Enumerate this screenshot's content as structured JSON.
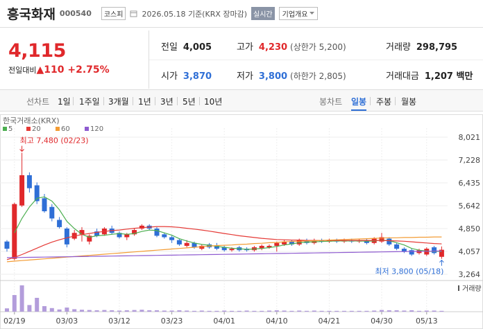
{
  "header": {
    "name": "흥국화재",
    "code": "000540",
    "market": "코스피",
    "date": "2026.05.18 기준(KRX 장마감)",
    "realtime": "실시간",
    "company_info": "기업개요"
  },
  "quote": {
    "price": "4,115",
    "change_label": "전일대비",
    "change": "▲110",
    "change_pct": "+2.75%"
  },
  "stats": [
    {
      "label": "전일",
      "value": "4,005"
    },
    {
      "label": "고가",
      "value": "4,230",
      "note": "(상한가 5,200)"
    },
    {
      "label": "거래량",
      "value": "298,795"
    },
    {
      "label": "시가",
      "value": "3,870"
    },
    {
      "label": "저가",
      "value": "3,800",
      "note": "(하한가 2,805)"
    },
    {
      "label": "거래대금",
      "value": "1,207 백만"
    }
  ],
  "tabs": {
    "line_chart": "선차트",
    "line_periods": [
      "1일",
      "1주일",
      "3개월",
      "1년",
      "3년",
      "5년",
      "10년"
    ],
    "candle_chart": "봉차트",
    "candle_periods": [
      "일봉",
      "주봉",
      "월봉"
    ],
    "selected_period": 0
  },
  "chart_data": {
    "type": "candlestick",
    "source": "한국거래소(KRX)",
    "categories": [
      null,
      "02/19",
      null,
      null,
      null,
      null,
      null,
      null,
      "03/03",
      null,
      null,
      null,
      null,
      null,
      null,
      "03/12",
      null,
      null,
      null,
      null,
      null,
      null,
      "03/23",
      null,
      null,
      null,
      null,
      null,
      null,
      "04/01",
      null,
      null,
      null,
      null,
      null,
      null,
      "04/10",
      null,
      null,
      null,
      null,
      null,
      null,
      "04/21",
      null,
      null,
      null,
      null,
      null,
      null,
      "04/30",
      null,
      null,
      null,
      null,
      null,
      "05/13",
      null,
      null
    ],
    "open": [
      4400,
      3800,
      5650,
      6700,
      6350,
      5900,
      5600,
      5150,
      4850,
      4500,
      4650,
      4400,
      4750,
      4650,
      4850,
      4700,
      4550,
      4650,
      4850,
      4950,
      4850,
      4650,
      4550,
      4450,
      4250,
      4350,
      4150,
      4300,
      4250,
      4200,
      4100,
      4200,
      4150,
      4100,
      4150,
      4200,
      4250,
      4300,
      4400,
      4300,
      4450,
      4350,
      4450,
      4400,
      4450,
      4400,
      4450,
      4400,
      4450,
      4350,
      4400,
      4500,
      4300,
      4150,
      4100,
      4000,
      3950,
      4200,
      3870
    ],
    "high": [
      4450,
      5750,
      7480,
      6800,
      6450,
      6050,
      5700,
      5250,
      4900,
      4800,
      4900,
      4650,
      4850,
      4900,
      4950,
      4750,
      4700,
      4850,
      5000,
      5000,
      4900,
      4700,
      4600,
      4500,
      4450,
      4400,
      4300,
      4350,
      4350,
      4250,
      4200,
      4250,
      4200,
      4250,
      4300,
      4300,
      4400,
      4450,
      4450,
      4500,
      4500,
      4500,
      4500,
      4500,
      4500,
      4500,
      4500,
      4500,
      4500,
      4550,
      4700,
      4550,
      4350,
      4200,
      4150,
      4150,
      4200,
      4250,
      4230
    ],
    "low": [
      4050,
      3750,
      5600,
      6100,
      5700,
      5400,
      5100,
      4850,
      4200,
      4450,
      4400,
      4300,
      4550,
      4600,
      4650,
      4500,
      4450,
      4600,
      4800,
      4800,
      4550,
      4500,
      4350,
      4250,
      4200,
      4150,
      4100,
      4150,
      4100,
      4050,
      4050,
      4050,
      4050,
      4050,
      4100,
      4150,
      4050,
      4250,
      4250,
      4250,
      4300,
      4300,
      4350,
      4350,
      4350,
      4350,
      4350,
      4350,
      4300,
      4300,
      4350,
      4250,
      4100,
      4000,
      3900,
      3950,
      3900,
      3950,
      3800
    ],
    "close": [
      4150,
      5700,
      6700,
      6250,
      5800,
      5450,
      5200,
      4900,
      4300,
      4700,
      4800,
      4600,
      4600,
      4850,
      4700,
      4550,
      4650,
      4800,
      4950,
      4850,
      4600,
      4550,
      4450,
      4300,
      4350,
      4200,
      4250,
      4200,
      4150,
      4100,
      4150,
      4100,
      4100,
      4200,
      4250,
      4250,
      4350,
      4400,
      4300,
      4450,
      4350,
      4450,
      4400,
      4450,
      4400,
      4450,
      4400,
      4450,
      4350,
      4500,
      4550,
      4300,
      4150,
      4050,
      3950,
      4100,
      4150,
      4000,
      4115
    ],
    "up_color": "#e0282b",
    "down_color": "#2f6fd6",
    "moving_averages": [
      {
        "name": "5",
        "color": "#4caf50",
        "values": [
          null,
          4700,
          5200,
          5600,
          5900,
          5950,
          5800,
          5500,
          5100,
          4850,
          4650,
          4550,
          4600,
          4620,
          4650,
          4680,
          4650,
          4680,
          4750,
          4800,
          4780,
          4700,
          4620,
          4500,
          4420,
          4350,
          4300,
          4270,
          4230,
          4200,
          4170,
          4150,
          4130,
          4140,
          4160,
          4190,
          4230,
          4280,
          4320,
          4360,
          4380,
          4390,
          4400,
          4410,
          4420,
          4420,
          4420,
          4420,
          4410,
          4420,
          4450,
          4430,
          4360,
          4280,
          4160,
          4100,
          4070,
          4060,
          4060
        ]
      },
      {
        "name": "20",
        "color": "#e53935",
        "values": [
          3770,
          3850,
          3950,
          4060,
          4170,
          4280,
          4380,
          4460,
          4530,
          4590,
          4640,
          4680,
          4720,
          4750,
          4780,
          4800,
          4830,
          4860,
          4880,
          4900,
          4920,
          4920,
          4910,
          4890,
          4860,
          4830,
          4800,
          4760,
          4720,
          4680,
          4640,
          4600,
          4570,
          4540,
          4510,
          4490,
          4470,
          4460,
          4450,
          4450,
          4440,
          4440,
          4440,
          4440,
          4440,
          4440,
          4440,
          4440,
          4440,
          4440,
          4440,
          4430,
          4420,
          4410,
          4390,
          4370,
          4350,
          4330,
          4320
        ]
      },
      {
        "name": "60",
        "color": "#f39c34",
        "values": [
          3700,
          3720,
          3740,
          3760,
          3780,
          3800,
          3820,
          3840,
          3860,
          3880,
          3900,
          3920,
          3940,
          3960,
          3980,
          4000,
          4020,
          4040,
          4060,
          4080,
          4100,
          4120,
          4140,
          4160,
          4180,
          4200,
          4220,
          4240,
          4260,
          4270,
          4280,
          4300,
          4310,
          4330,
          4340,
          4360,
          4370,
          4390,
          4400,
          4410,
          4420,
          4430,
          4440,
          4450,
          4460,
          4470,
          4480,
          4490,
          4500,
          4510,
          4520,
          4530,
          4530,
          4540,
          4540,
          4550,
          4550,
          4560,
          4560
        ]
      },
      {
        "name": "120",
        "color": "#8e5bd0",
        "values": [
          3840,
          3844,
          3848,
          3852,
          3856,
          3860,
          3864,
          3868,
          3872,
          3876,
          3880,
          3884,
          3888,
          3892,
          3896,
          3900,
          3904,
          3908,
          3912,
          3916,
          3920,
          3924,
          3928,
          3932,
          3936,
          3940,
          3944,
          3948,
          3952,
          3956,
          3960,
          3964,
          3968,
          3972,
          3976,
          3980,
          3984,
          3988,
          3992,
          3996,
          4000,
          4004,
          4008,
          4012,
          4016,
          4020,
          4024,
          4028,
          4032,
          4036,
          4040,
          4044,
          4048,
          4052,
          4056,
          4060,
          4064,
          4068,
          4072
        ]
      }
    ],
    "volume": {
      "name": "거래량",
      "color": "#b39ddb",
      "ylim": [
        0,
        10000000
      ],
      "values": [
        1200000,
        6000000,
        9500000,
        2400000,
        5000000,
        2000000,
        1300000,
        800000,
        1500000,
        900000,
        700000,
        600000,
        500000,
        600000,
        500000,
        400000,
        500000,
        600000,
        700000,
        500000,
        500000,
        400000,
        400000,
        500000,
        400000,
        300000,
        400000,
        300000,
        300000,
        400000,
        300000,
        300000,
        400000,
        300000,
        300000,
        400000,
        500000,
        400000,
        300000,
        400000,
        300000,
        400000,
        300000,
        300000,
        300000,
        300000,
        300000,
        300000,
        300000,
        400000,
        600000,
        500000,
        500000,
        400000,
        500000,
        300000,
        400000,
        400000,
        298795
      ]
    },
    "ylim": [
      3048,
      8213
    ],
    "yticks": [
      {
        "value": 8021,
        "label": "8,021"
      },
      {
        "value": 7228,
        "label": "7,228"
      },
      {
        "value": 6435,
        "label": "6,435"
      },
      {
        "value": 5642,
        "label": "5,642"
      },
      {
        "value": 4850,
        "label": "4,850"
      },
      {
        "value": 4057,
        "label": "4,057"
      },
      {
        "value": 3264,
        "label": "3,264"
      }
    ],
    "grid": true,
    "annotations": [
      {
        "text": "최고 7,480 (02/23)",
        "value": 7480,
        "color": "#e0282b"
      },
      {
        "text": "최저 3,800 (05/18)",
        "value": 3800,
        "color": "#2f6fd6"
      }
    ]
  }
}
